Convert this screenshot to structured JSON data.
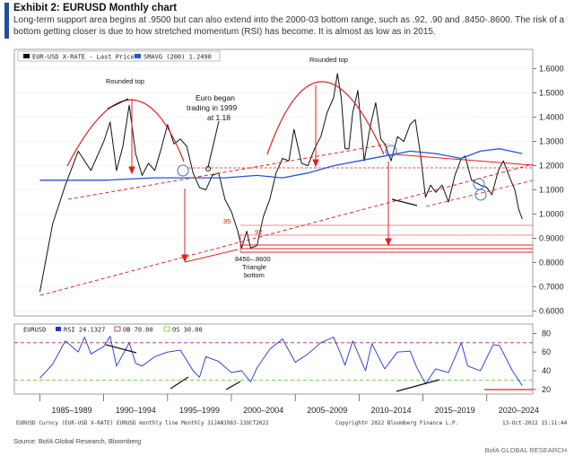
{
  "header": {
    "title": "Exhibit 2: EURUSD Monthly chart",
    "subtitle": "Long-term support area begins at .9500 but can also extend into the 2000-03 bottom range, such as .92, .90 and .8450-.8600. The risk of a bottom getting closer is due to how stretched momentum (RSI) has become. It is almost as low as in 2015."
  },
  "colors": {
    "price": "#111111",
    "sma": "#2255dd",
    "rsi": "#2233cc",
    "ob": "#b02060",
    "os": "#66cc33",
    "annotation": "#e02020",
    "accent": "#1f4e9c"
  },
  "chart_data": [
    {
      "type": "line",
      "title": "",
      "legend": {
        "position": "top-left",
        "entries": [
          "EUR-USD X-RATE - Last Price",
          "SMAVG (200) 1.2490"
        ]
      },
      "ylim": [
        0.58,
        1.68
      ],
      "yticks": [
        "1.6000",
        "1.5000",
        "1.4000",
        "1.3000",
        "1.2000",
        "1.1000",
        "1.0000",
        "0.9000",
        "0.8000",
        "0.7000",
        "0.6000"
      ],
      "series": [
        {
          "name": "EUR-USD X-RATE - Last Price",
          "x": [
            1985.0,
            1986.0,
            1987.0,
            1988.0,
            1989.0,
            1990.0,
            1990.5,
            1991.0,
            1991.5,
            1992.0,
            1992.5,
            1993.0,
            1993.5,
            1994.0,
            1994.5,
            1995.0,
            1995.5,
            1996.0,
            1996.5,
            1997.0,
            1997.5,
            1998.0,
            1998.5,
            1999.0,
            1999.5,
            2000.0,
            2000.5,
            2000.8,
            2001.2,
            2001.5,
            2002.0,
            2002.5,
            2003.0,
            2003.5,
            2004.0,
            2004.5,
            2004.9,
            2005.5,
            2006.0,
            2006.5,
            2007.0,
            2007.5,
            2008.0,
            2008.3,
            2008.6,
            2008.9,
            2009.2,
            2009.5,
            2009.9,
            2010.4,
            2010.9,
            2011.3,
            2011.7,
            2012.0,
            2012.5,
            2013.0,
            2013.5,
            2014.0,
            2014.4,
            2014.8,
            2015.2,
            2015.6,
            2016.0,
            2016.5,
            2017.0,
            2017.5,
            2018.0,
            2018.3,
            2018.8,
            2019.5,
            2020.0,
            2020.4,
            2020.9,
            2021.3,
            2021.8,
            2022.2,
            2022.5,
            2022.78
          ],
          "y": [
            0.68,
            0.96,
            1.12,
            1.26,
            1.18,
            1.3,
            1.38,
            1.18,
            1.28,
            1.45,
            1.25,
            1.16,
            1.21,
            1.18,
            1.27,
            1.37,
            1.29,
            1.31,
            1.28,
            1.17,
            1.11,
            1.1,
            1.16,
            1.17,
            1.06,
            1.01,
            0.93,
            0.86,
            0.93,
            0.86,
            0.87,
            0.99,
            1.06,
            1.17,
            1.23,
            1.22,
            1.35,
            1.21,
            1.2,
            1.27,
            1.32,
            1.42,
            1.48,
            1.58,
            1.48,
            1.27,
            1.27,
            1.42,
            1.51,
            1.22,
            1.37,
            1.46,
            1.31,
            1.29,
            1.22,
            1.32,
            1.3,
            1.37,
            1.39,
            1.25,
            1.07,
            1.12,
            1.09,
            1.12,
            1.05,
            1.16,
            1.23,
            1.24,
            1.14,
            1.12,
            1.11,
            1.08,
            1.18,
            1.22,
            1.15,
            1.1,
            1.02,
            0.98
          ]
        },
        {
          "name": "SMAVG (200) 1.2490",
          "x": [
            1985.0,
            1990.0,
            1994.0,
            1997.0,
            1999.5,
            2002.0,
            2004.0,
            2006.0,
            2008.0,
            2010.0,
            2012.0,
            2014.0,
            2016.0,
            2018.0,
            2019.5,
            2021.0,
            2022.78
          ],
          "y": [
            1.14,
            1.14,
            1.15,
            1.15,
            1.15,
            1.16,
            1.15,
            1.17,
            1.2,
            1.22,
            1.24,
            1.26,
            1.25,
            1.23,
            1.26,
            1.27,
            1.25
          ]
        }
      ]
    },
    {
      "type": "line",
      "title": "",
      "legend": {
        "position": "top-left",
        "entries": [
          "EURUSD",
          "RSI 24.1327",
          "OB 70.00",
          "OS 30.00"
        ]
      },
      "ylim": [
        15,
        90
      ],
      "yticks": [
        "80",
        "60",
        "40",
        "20"
      ],
      "series": [
        {
          "name": "RSI 24.1327",
          "x": [
            1985.0,
            1986.0,
            1987.0,
            1988.0,
            1988.5,
            1989.0,
            1990.0,
            1990.5,
            1991.0,
            1992.0,
            1992.5,
            1993.0,
            1994.0,
            1995.0,
            1996.0,
            1997.0,
            1997.5,
            1998.0,
            1999.0,
            2000.0,
            2000.8,
            2001.5,
            2002.0,
            2003.0,
            2004.0,
            2005.0,
            2006.0,
            2007.0,
            2008.0,
            2008.5,
            2008.9,
            2009.5,
            2010.5,
            2011.0,
            2012.0,
            2013.0,
            2014.0,
            2014.5,
            2015.2,
            2016.0,
            2017.0,
            2018.0,
            2018.5,
            2019.5,
            2020.5,
            2021.0,
            2022.0,
            2022.78
          ],
          "y": [
            32,
            47,
            72,
            60,
            76,
            58,
            66,
            77,
            45,
            70,
            48,
            45,
            55,
            60,
            62,
            40,
            33,
            55,
            50,
            38,
            40,
            28,
            43,
            63,
            74,
            49,
            58,
            70,
            76,
            60,
            46,
            72,
            40,
            69,
            42,
            60,
            61,
            44,
            26,
            42,
            38,
            70,
            45,
            40,
            68,
            67,
            40,
            24
          ]
        },
        {
          "name": "OB 70.00",
          "y": 70
        },
        {
          "name": "OS 30.00",
          "y": 30
        }
      ]
    }
  ],
  "x_axis": {
    "labels": [
      "1985–1989",
      "1990–1994",
      "1995–1999",
      "2000–2004",
      "2005–2009",
      "2010–2014",
      "2015–2019",
      "2020–2024"
    ]
  },
  "annotations": {
    "rounded_top_left": "Rounded top",
    "rounded_top_right": "Rounded top",
    "euro_began_1": "Euro began",
    "euro_began_2": "trading in 1999",
    "euro_began_3": "at 1.18",
    "level_95": ".95",
    "level_92": ".92",
    "bottom_range": "8450–.8600",
    "triangle_1": "Triangle",
    "triangle_2": "bottom"
  },
  "footer": {
    "line_left": "EURUSD Curncy (EUR-USD X-RATE) EURUSD monthly line  Monthly 31JAN1983-13OCT2022",
    "line_mid": "Copyright© 2022 Bloomberg Finance L.P.",
    "line_right": "13-Oct-2022 15:11:44",
    "source": "Source: BofA Global Research, Bloomberg",
    "brand": "BofA GLOBAL RESEARCH"
  }
}
